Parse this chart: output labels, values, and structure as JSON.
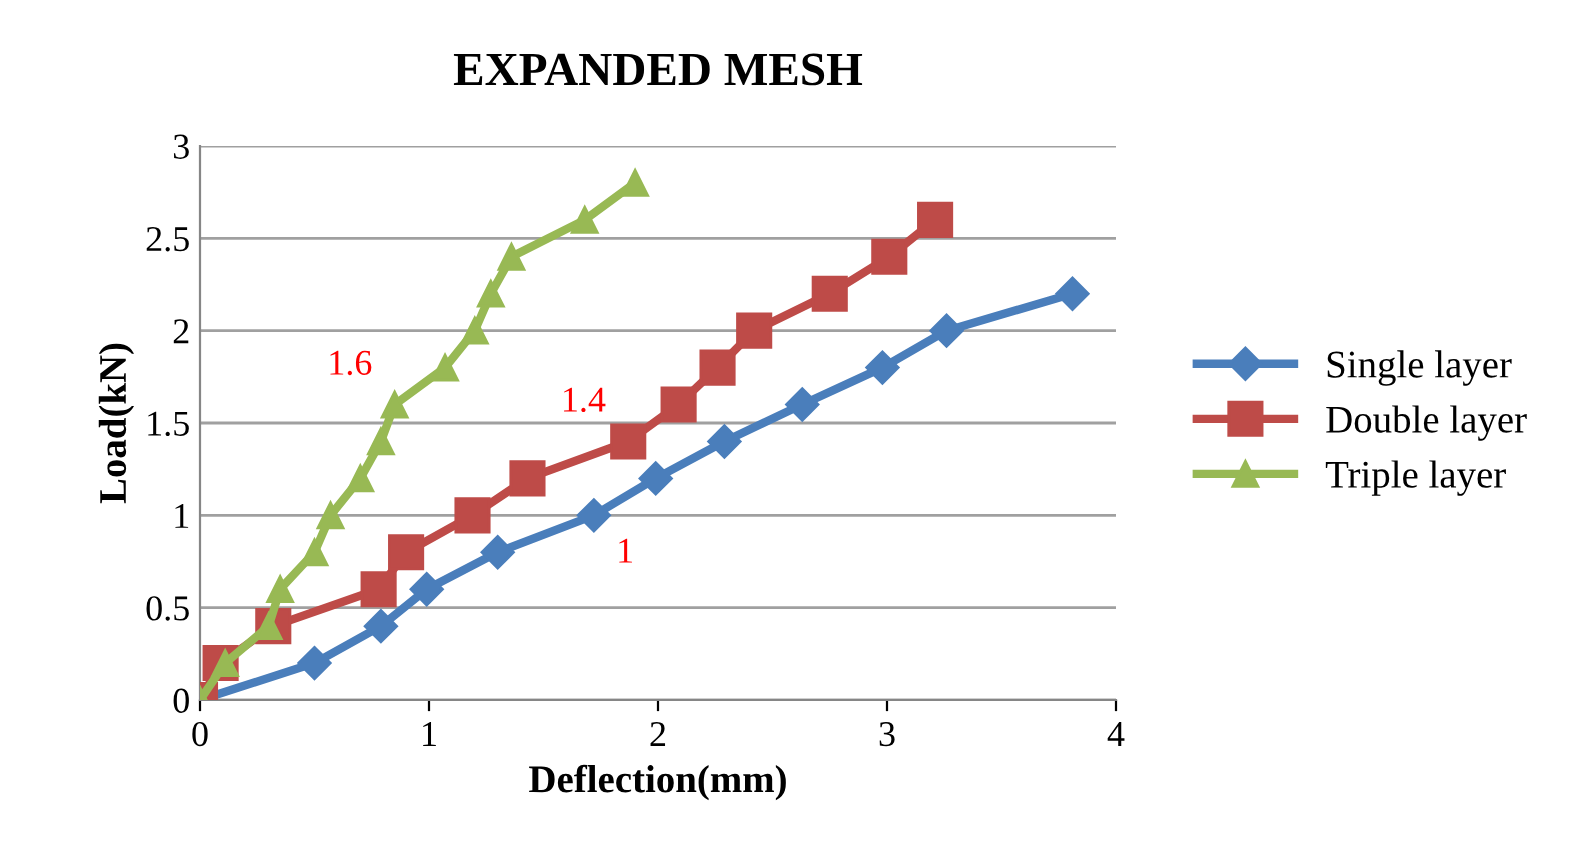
{
  "chart_data": {
    "type": "line",
    "title": "EXPANDED MESH",
    "xlabel": "Deflection(mm)",
    "ylabel": "Load(kN)",
    "xlim": [
      0,
      4
    ],
    "xticks": [
      0,
      1,
      2,
      3,
      4
    ],
    "ylim": [
      0,
      3
    ],
    "yticks": [
      0,
      0.5,
      1,
      1.5,
      2,
      2.5,
      3
    ],
    "grid": "y",
    "legend": "right",
    "line_style": "solid",
    "series": [
      {
        "name": "Single layer",
        "color": "#4a7ebb",
        "marker": "diamond",
        "x": [
          0,
          0.5,
          0.79,
          0.99,
          1.3,
          1.72,
          1.99,
          2.29,
          2.63,
          2.98,
          3.26,
          3.81
        ],
        "values": [
          0,
          0.2,
          0.4,
          0.6,
          0.8,
          1.0,
          1.2,
          1.4,
          1.6,
          1.8,
          2.0,
          2.2
        ]
      },
      {
        "name": "Double layer",
        "color": "#be4b48",
        "marker": "square",
        "x": [
          0,
          0.09,
          0.32,
          0.78,
          0.9,
          1.19,
          1.43,
          1.87,
          2.09,
          2.26,
          2.42,
          2.75,
          3.01,
          3.21
        ],
        "values": [
          0,
          0.2,
          0.4,
          0.6,
          0.8,
          1.0,
          1.2,
          1.4,
          1.6,
          1.8,
          2.0,
          2.2,
          2.4,
          2.6
        ]
      },
      {
        "name": "Triple layer",
        "color": "#98b954",
        "marker": "triangle",
        "x": [
          0,
          0.11,
          0.3,
          0.35,
          0.5,
          0.57,
          0.7,
          0.79,
          0.85,
          1.07,
          1.2,
          1.27,
          1.36,
          1.68,
          1.9
        ],
        "values": [
          0,
          0.2,
          0.4,
          0.6,
          0.8,
          1.0,
          1.2,
          1.4,
          1.6,
          1.8,
          2.0,
          2.2,
          2.4,
          2.6,
          2.8
        ]
      }
    ],
    "annotations": [
      {
        "text": "1.6",
        "x": 0.85,
        "y": 1.6
      },
      {
        "text": "1.4",
        "x": 1.87,
        "y": 1.4
      },
      {
        "text": "1",
        "x": 1.72,
        "y": 1.0
      }
    ]
  }
}
